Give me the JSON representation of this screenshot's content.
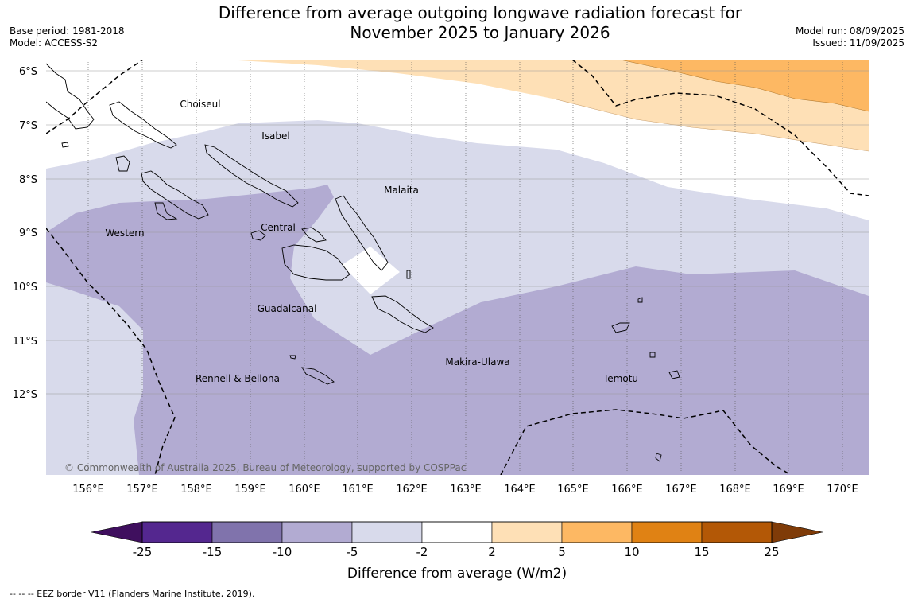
{
  "title_line1": "Difference from average outgoing longwave radiation forecast for",
  "title_line2": "November 2025 to January 2026",
  "base_period": "Base period: 1981-2018",
  "model": "Model: ACCESS-S2",
  "model_run": "Model run: 08/09/2025",
  "issued": "Issued: 11/09/2025",
  "copyright": "© Commonwealth of Australia 2025, Bureau of Meteorology, supported by COSPPac",
  "footnote": "--  --  -- EEZ border V11 (Flanders Marine Institute, 2019).",
  "map": {
    "lat_labels": [
      "6°S",
      "7°S",
      "8°S",
      "9°S",
      "10°S",
      "11°S",
      "12°S"
    ],
    "lon_labels": [
      "156°E",
      "157°E",
      "158°E",
      "159°E",
      "160°E",
      "161°E",
      "162°E",
      "163°E",
      "164°E",
      "165°E",
      "166°E",
      "167°E",
      "168°E",
      "169°E",
      "170°E"
    ],
    "province_labels": [
      "Choiseul",
      "Isabel",
      "Malaita",
      "Western",
      "Central",
      "Guadalcanal",
      "Makira-Ulawa",
      "Rennell & Bellona",
      "Temotu"
    ]
  },
  "colorbar": {
    "title": "Difference from average (W/m2)",
    "tick_labels": [
      "-25",
      "-15",
      "-10",
      "-5",
      "-2",
      "2",
      "5",
      "10",
      "15",
      "25"
    ],
    "colors": [
      "#3f0f5e",
      "#54278f",
      "#8073ac",
      "#b2abd2",
      "#d8daeb",
      "#ffffff",
      "#fee0b6",
      "#fdb863",
      "#e08214",
      "#b35806",
      "#7f3b08"
    ]
  }
}
